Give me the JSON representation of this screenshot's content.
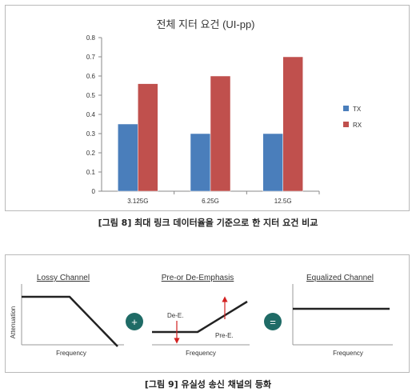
{
  "chart_data": {
    "type": "bar",
    "title": "전체 지터 요건 (UI-pp)",
    "categories": [
      "3.125G",
      "6.25G",
      "12.5G"
    ],
    "series": [
      {
        "name": "TX",
        "values": [
          0.35,
          0.3,
          0.3
        ],
        "color": "#4a7ebb"
      },
      {
        "name": "RX",
        "values": [
          0.56,
          0.6,
          0.7
        ],
        "color": "#c0504d"
      }
    ],
    "ylim": [
      0,
      0.8
    ],
    "yticks": [
      "0",
      "0.1",
      "0.2",
      "0.3",
      "0.4",
      "0.5",
      "0.6",
      "0.7",
      "0.8"
    ],
    "grid": false,
    "legend": "right"
  },
  "captions": {
    "figure8": "[그림 8] 최대 링크 데이터율을 기준으로 한 지터 요건 비교",
    "figure9": "[그림 9] 유실성 송신 채널의 등화"
  },
  "diagram": {
    "lossy": {
      "title": "Lossy Channel",
      "ylabel": "Attenuation",
      "xlabel": "Frequency"
    },
    "emphasis": {
      "title": "Pre-or De-Emphasis",
      "xlabel": "Frequency",
      "de_label": "De-E.",
      "pre_label": "Pre-E."
    },
    "equalized": {
      "title": "Equalized Channel",
      "xlabel": "Frequency"
    },
    "plus_symbol": "+",
    "equals_symbol": "=",
    "operator_color": "#1f6b66",
    "arrow_color": "#d32020"
  }
}
